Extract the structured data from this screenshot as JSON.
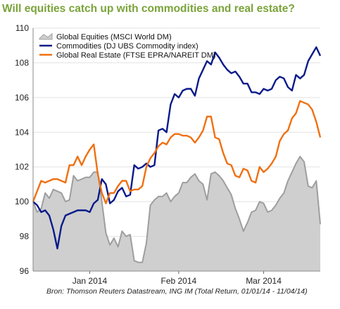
{
  "chart_data": {
    "type": "line",
    "title": "Will equities catch up with commodities and real estate?",
    "source": "Bron:  Thomson Reuters Datastream, ING IM (Total Return, 01/01/14 - 11/04/14)",
    "ylim": [
      96,
      110
    ],
    "yticks": [
      96,
      98,
      100,
      102,
      104,
      106,
      108,
      110
    ],
    "x_tick_labels": [
      "Jan 2014",
      "Feb 2014",
      "Mar 2014"
    ],
    "x_tick_positions": [
      14,
      36,
      57
    ],
    "x_count": 72,
    "legend_position": "top-left",
    "series": [
      {
        "name": "Global Equities (MSCI World DM)",
        "style": "area",
        "color": "#9e9e9e",
        "fill": "#cfcfcf",
        "values": [
          100.0,
          99.4,
          99.6,
          100.5,
          100.2,
          100.7,
          100.6,
          100.5,
          100.0,
          100.1,
          101.5,
          101.2,
          101.3,
          101.4,
          101.4,
          101.7,
          101.7,
          100.0,
          98.2,
          97.5,
          97.9,
          97.4,
          98.3,
          98.0,
          98.1,
          96.6,
          96.5,
          96.5,
          97.6,
          99.8,
          100.1,
          100.3,
          100.3,
          100.5,
          100.0,
          100.3,
          100.5,
          101.1,
          101.1,
          101.4,
          101.6,
          101.2,
          101.0,
          100.1,
          101.6,
          101.7,
          101.5,
          101.2,
          100.8,
          100.4,
          99.6,
          99.0,
          98.3,
          98.8,
          99.4,
          99.5,
          100.0,
          99.9,
          99.4,
          99.5,
          99.8,
          100.2,
          100.5,
          101.2,
          101.7,
          102.2,
          102.6,
          102.3,
          100.9,
          100.8,
          101.2,
          98.7
        ]
      },
      {
        "name": "Commodities (DJ UBS Commodity index)",
        "style": "line",
        "color": "#0a1a8a",
        "values": [
          100.0,
          99.8,
          99.4,
          99.5,
          99.2,
          98.4,
          97.3,
          98.6,
          99.2,
          99.3,
          99.4,
          99.5,
          99.5,
          99.5,
          99.4,
          99.9,
          100.1,
          101.3,
          101.0,
          99.9,
          100.1,
          100.6,
          100.8,
          100.3,
          100.4,
          102.1,
          101.9,
          102.0,
          102.2,
          102.0,
          102.1,
          104.1,
          104.2,
          104.0,
          105.6,
          106.2,
          106.0,
          106.4,
          106.5,
          106.5,
          106.1,
          107.1,
          107.6,
          108.1,
          107.9,
          108.6,
          108.3,
          107.9,
          107.6,
          107.4,
          107.5,
          107.2,
          106.8,
          106.8,
          106.3,
          106.3,
          106.2,
          106.5,
          106.4,
          106.5,
          107.0,
          107.2,
          107.1,
          106.6,
          106.4,
          107.3,
          107.1,
          107.3,
          108.1,
          108.5,
          108.9,
          108.4
        ]
      },
      {
        "name": "Global Real Estate (FTSE EPRA/NAREIT DM)",
        "style": "line",
        "color": "#f07010",
        "values": [
          100.0,
          100.6,
          101.2,
          101.1,
          101.2,
          101.3,
          101.3,
          101.2,
          101.1,
          102.1,
          102.1,
          102.6,
          102.1,
          102.6,
          103.0,
          103.3,
          101.6,
          100.5,
          99.9,
          100.5,
          100.5,
          100.9,
          101.2,
          101.2,
          100.6,
          100.7,
          100.7,
          100.9,
          102.0,
          102.5,
          102.8,
          103.2,
          103.4,
          103.3,
          103.7,
          103.9,
          103.9,
          103.8,
          103.8,
          103.7,
          103.4,
          103.7,
          104.1,
          104.9,
          104.9,
          103.7,
          103.6,
          102.8,
          102.2,
          102.1,
          101.5,
          101.4,
          101.9,
          101.8,
          101.2,
          101.1,
          102.0,
          101.7,
          101.9,
          102.2,
          102.6,
          103.5,
          103.9,
          104.1,
          104.8,
          105.1,
          105.8,
          105.7,
          105.6,
          105.3,
          104.6,
          103.7
        ]
      }
    ]
  }
}
